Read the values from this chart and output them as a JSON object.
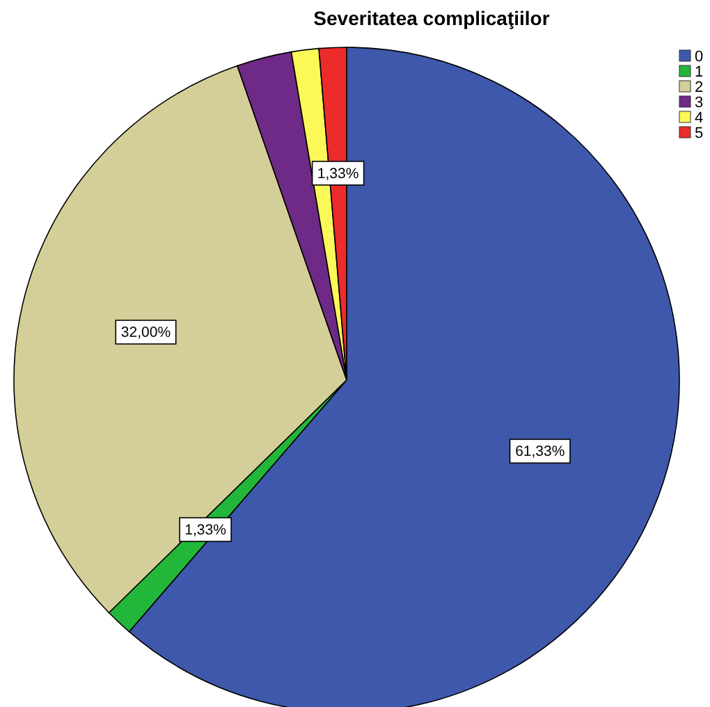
{
  "chart_data": {
    "type": "pie",
    "title": "Severitatea complicaţiilor",
    "categories": [
      "0",
      "1",
      "2",
      "3",
      "4",
      "5"
    ],
    "values": [
      61.33,
      1.33,
      32.0,
      2.67,
      1.33,
      1.33
    ],
    "colors": [
      "#3e58ac",
      "#22b63a",
      "#d4cf98",
      "#6e2a86",
      "#fbf957",
      "#ec2b2b"
    ],
    "value_labels": [
      "61,33%",
      "1,33%",
      "32,00%",
      null,
      null,
      "1,33%"
    ],
    "legend": "top right"
  }
}
